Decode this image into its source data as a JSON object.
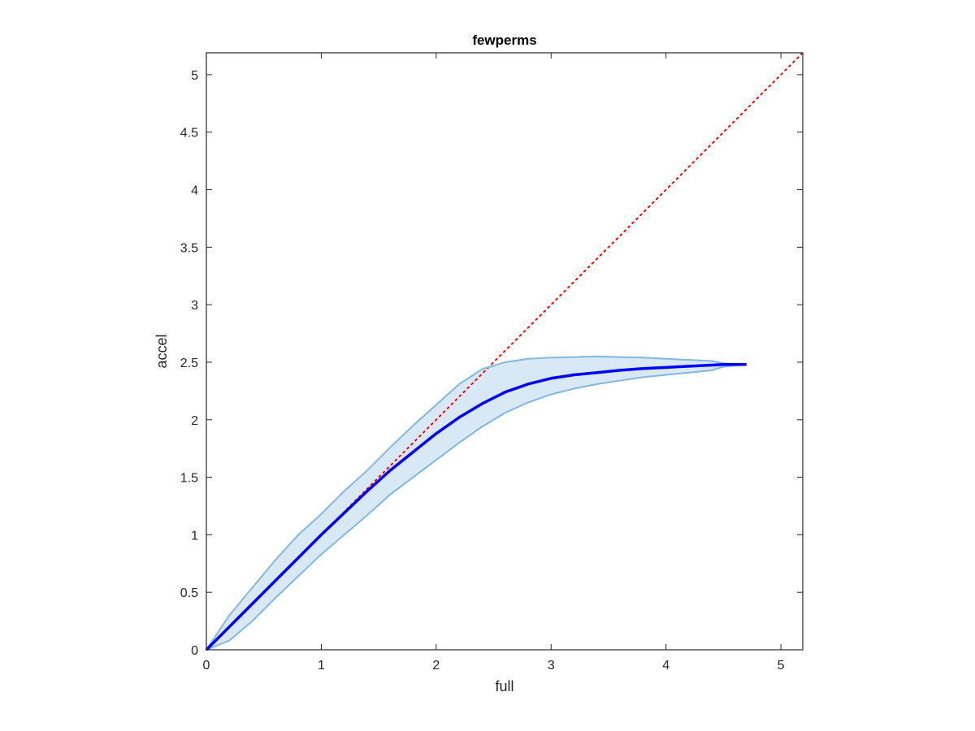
{
  "chart_data": {
    "type": "line",
    "title": "fewperms",
    "xlabel": "full",
    "ylabel": "accel",
    "xlim": [
      0,
      5.19
    ],
    "ylim": [
      0,
      5.19
    ],
    "xticks": [
      0,
      1,
      2,
      3,
      4,
      5
    ],
    "xtick_labels": [
      "0",
      "1",
      "2",
      "3",
      "4",
      "5"
    ],
    "yticks": [
      0,
      0.5,
      1,
      1.5,
      2,
      2.5,
      3,
      3.5,
      4,
      4.5,
      5
    ],
    "ytick_labels": [
      "0",
      "0.5",
      "1",
      "1.5",
      "2",
      "2.5",
      "3",
      "3.5",
      "4",
      "4.5",
      "5"
    ],
    "grid": false,
    "box": true,
    "x": [
      0,
      0.2,
      0.4,
      0.6,
      0.8,
      1.0,
      1.2,
      1.4,
      1.6,
      1.8,
      2.0,
      2.2,
      2.4,
      2.6,
      2.8,
      3.0,
      3.2,
      3.4,
      3.6,
      3.8,
      4.0,
      4.2,
      4.4,
      4.5,
      4.7
    ],
    "series": [
      {
        "role": "mean",
        "color": "#0000ff",
        "values": [
          0,
          0.2,
          0.4,
          0.6,
          0.8,
          1.0,
          1.19,
          1.38,
          1.56,
          1.72,
          1.88,
          2.02,
          2.14,
          2.24,
          2.31,
          2.36,
          2.39,
          2.41,
          2.43,
          2.445,
          2.455,
          2.465,
          2.475,
          2.48,
          2.48
        ]
      },
      {
        "role": "upper-bound",
        "color": "#82b8df",
        "values": [
          0,
          0.3,
          0.54,
          0.78,
          1.0,
          1.18,
          1.38,
          1.56,
          1.76,
          1.95,
          2.13,
          2.31,
          2.44,
          2.5,
          2.53,
          2.54,
          2.545,
          2.55,
          2.545,
          2.54,
          2.53,
          2.52,
          2.51,
          2.49,
          2.48
        ]
      },
      {
        "role": "lower-bound",
        "color": "#82b8df",
        "values": [
          0,
          0.08,
          0.25,
          0.45,
          0.64,
          0.83,
          1.0,
          1.17,
          1.35,
          1.5,
          1.65,
          1.8,
          1.94,
          2.06,
          2.15,
          2.22,
          2.27,
          2.31,
          2.34,
          2.37,
          2.39,
          2.41,
          2.43,
          2.46,
          2.48
        ]
      }
    ],
    "band_fill_color": "#d8e8f5",
    "reference_line": {
      "type": "identity",
      "style": "dotted",
      "color": "#ff0000",
      "from": [
        0,
        0
      ],
      "to": [
        5.19,
        5.19
      ]
    }
  }
}
